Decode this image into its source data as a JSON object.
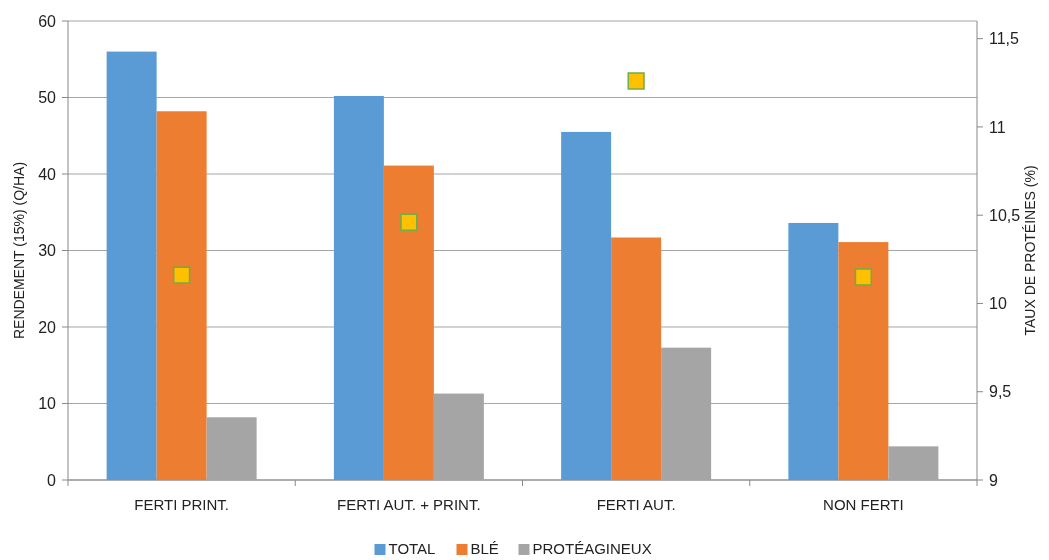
{
  "chart_data": {
    "type": "bar",
    "ylabel": "RENDEMENT (15%) (Q/HA)",
    "y2label": "TAUX DE PROTÉINES (%)",
    "categories": [
      "FERTI PRINT.",
      "FERTI AUT. + PRINT.",
      "FERTI AUT.",
      "NON FERTI"
    ],
    "series": [
      {
        "name": "TOTAL",
        "color": "#5b9bd5",
        "values": [
          56.0,
          50.2,
          45.5,
          33.6
        ]
      },
      {
        "name": "BLÉ",
        "color": "#ed7d31",
        "values": [
          48.2,
          41.1,
          31.7,
          31.1
        ]
      },
      {
        "name": "PROTÉAGINEUX",
        "color": "#a5a5a5",
        "values": [
          8.2,
          11.3,
          17.3,
          4.4
        ]
      },
      {
        "type": "scatter",
        "axis": "y2",
        "color": "#ffc000",
        "x": [
          "FERTI PRINT.",
          "FERTI AUT. + PRINT.",
          "FERTI AUT.",
          "NON FERTI"
        ],
        "values": [
          10.16,
          10.46,
          11.26,
          10.15
        ]
      }
    ],
    "ylim": [
      0,
      60
    ],
    "yticks": [
      0,
      10,
      20,
      30,
      40,
      50,
      60
    ],
    "y2lim": [
      9,
      11.6
    ],
    "y2ticks": [
      {
        "value": 9,
        "label": "9"
      },
      {
        "value": 9.5,
        "label": "9,5"
      },
      {
        "value": 10,
        "label": "10"
      },
      {
        "value": 10.5,
        "label": "10,5"
      },
      {
        "value": 11,
        "label": "11"
      },
      {
        "value": 11.5,
        "label": "11,5"
      }
    ],
    "grid": "y",
    "legend": "bottom",
    "marker": "square"
  }
}
